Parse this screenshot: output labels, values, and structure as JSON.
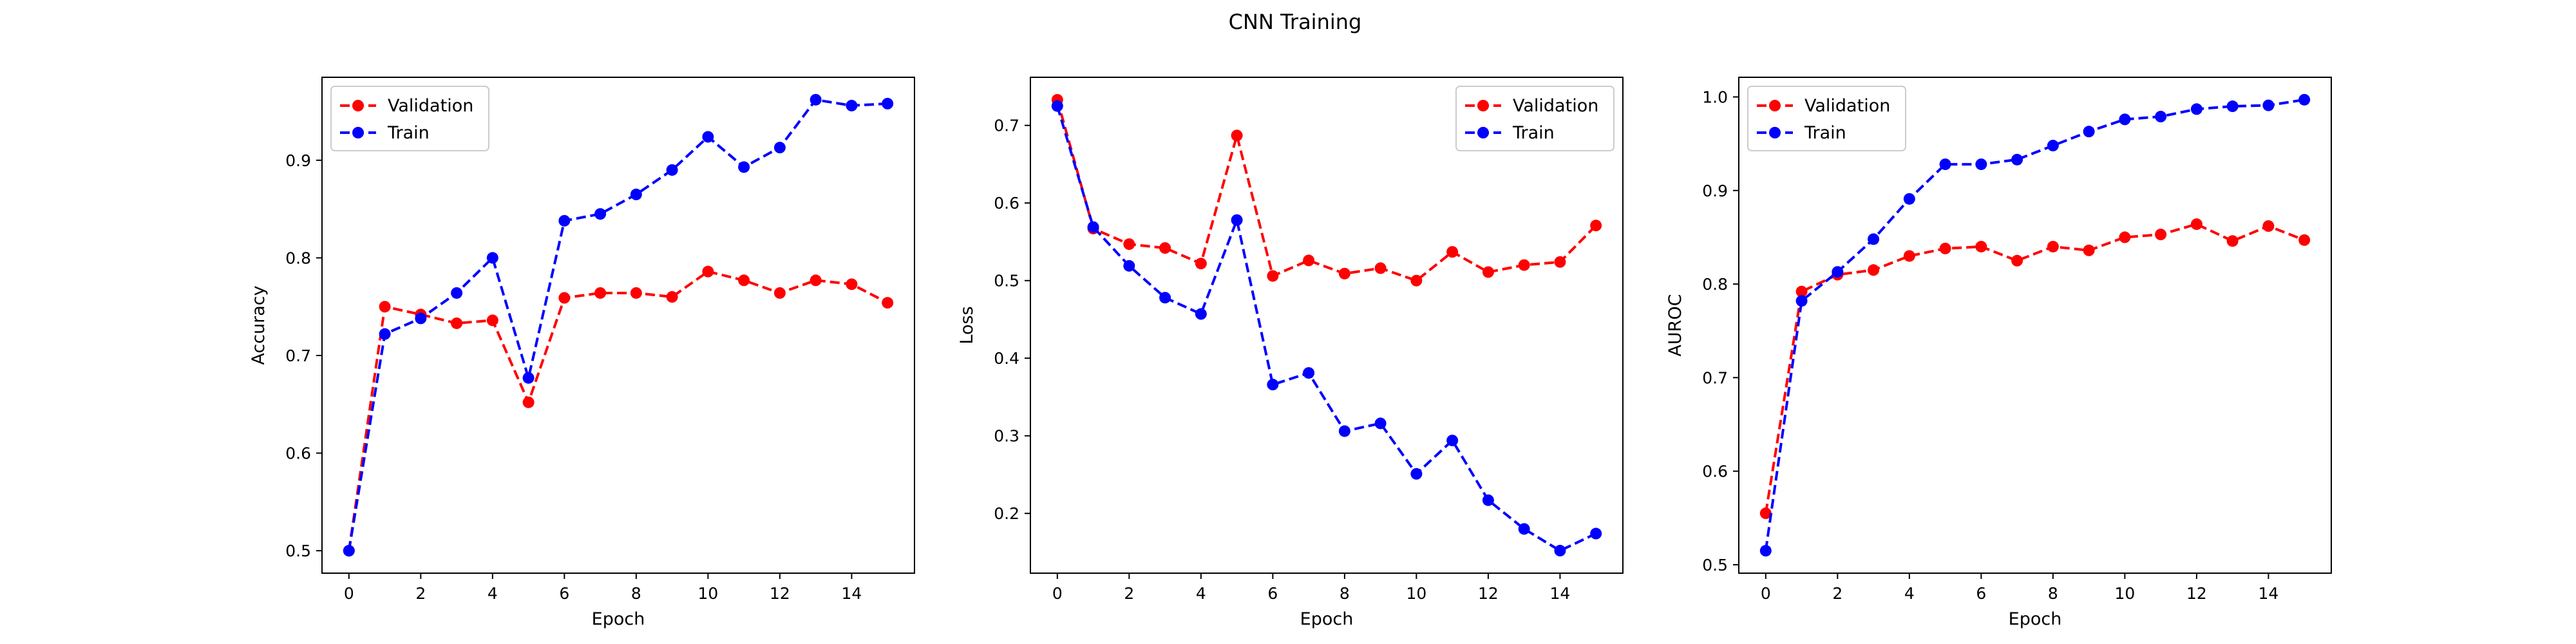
{
  "figure": {
    "title": "CNN Training"
  },
  "chart_data": [
    {
      "type": "line",
      "title": "",
      "xlabel": "Epoch",
      "ylabel": "Accuracy",
      "xlim": [
        -0.75,
        15.75
      ],
      "ylim": [
        0.477,
        0.985
      ],
      "xticks": [
        0,
        2,
        4,
        6,
        8,
        10,
        12,
        14
      ],
      "yticks": [
        0.5,
        0.6,
        0.7,
        0.8,
        0.9
      ],
      "grid": false,
      "legend": "top-left",
      "x": [
        0,
        1,
        2,
        3,
        4,
        5,
        6,
        7,
        8,
        9,
        10,
        11,
        12,
        13,
        14,
        15
      ],
      "series": [
        {
          "name": "Validation",
          "color": "#ff0000",
          "marker": "circle",
          "linestyle": "dashed",
          "values": [
            0.5,
            0.75,
            0.742,
            0.733,
            0.736,
            0.652,
            0.759,
            0.764,
            0.764,
            0.76,
            0.786,
            0.777,
            0.764,
            0.777,
            0.773,
            0.754
          ]
        },
        {
          "name": "Train",
          "color": "#0000ff",
          "marker": "circle",
          "linestyle": "dashed",
          "values": [
            0.5,
            0.722,
            0.738,
            0.764,
            0.8,
            0.677,
            0.838,
            0.845,
            0.865,
            0.89,
            0.924,
            0.893,
            0.913,
            0.962,
            0.956,
            0.958
          ]
        }
      ]
    },
    {
      "type": "line",
      "title": "",
      "xlabel": "Epoch",
      "ylabel": "Loss",
      "xlim": [
        -0.75,
        15.75
      ],
      "ylim": [
        0.123,
        0.762
      ],
      "xticks": [
        0,
        2,
        4,
        6,
        8,
        10,
        12,
        14
      ],
      "yticks": [
        0.2,
        0.3,
        0.4,
        0.5,
        0.6,
        0.7
      ],
      "grid": false,
      "legend": "top-right",
      "x": [
        0,
        1,
        2,
        3,
        4,
        5,
        6,
        7,
        8,
        9,
        10,
        11,
        12,
        13,
        14,
        15
      ],
      "series": [
        {
          "name": "Validation",
          "color": "#ff0000",
          "marker": "circle",
          "linestyle": "dashed",
          "values": [
            0.733,
            0.567,
            0.547,
            0.542,
            0.522,
            0.687,
            0.506,
            0.526,
            0.509,
            0.516,
            0.5,
            0.537,
            0.511,
            0.52,
            0.524,
            0.571
          ]
        },
        {
          "name": "Train",
          "color": "#0000ff",
          "marker": "circle",
          "linestyle": "dashed",
          "values": [
            0.725,
            0.569,
            0.519,
            0.478,
            0.457,
            0.578,
            0.366,
            0.381,
            0.306,
            0.316,
            0.251,
            0.294,
            0.217,
            0.18,
            0.152,
            0.174
          ]
        }
      ]
    },
    {
      "type": "line",
      "title": "",
      "xlabel": "Epoch",
      "ylabel": "AUROC",
      "xlim": [
        -0.75,
        15.75
      ],
      "ylim": [
        0.491,
        1.021
      ],
      "xticks": [
        0,
        2,
        4,
        6,
        8,
        10,
        12,
        14
      ],
      "yticks": [
        0.5,
        0.6,
        0.7,
        0.8,
        0.9,
        1.0
      ],
      "grid": false,
      "legend": "top-left",
      "x": [
        0,
        1,
        2,
        3,
        4,
        5,
        6,
        7,
        8,
        9,
        10,
        11,
        12,
        13,
        14,
        15
      ],
      "series": [
        {
          "name": "Validation",
          "color": "#ff0000",
          "marker": "circle",
          "linestyle": "dashed",
          "values": [
            0.555,
            0.792,
            0.81,
            0.815,
            0.83,
            0.838,
            0.84,
            0.825,
            0.84,
            0.836,
            0.85,
            0.853,
            0.864,
            0.846,
            0.862,
            0.847
          ]
        },
        {
          "name": "Train",
          "color": "#0000ff",
          "marker": "circle",
          "linestyle": "dashed",
          "values": [
            0.515,
            0.782,
            0.813,
            0.848,
            0.891,
            0.928,
            0.928,
            0.933,
            0.948,
            0.963,
            0.976,
            0.979,
            0.987,
            0.99,
            0.991,
            0.997
          ]
        }
      ]
    }
  ]
}
